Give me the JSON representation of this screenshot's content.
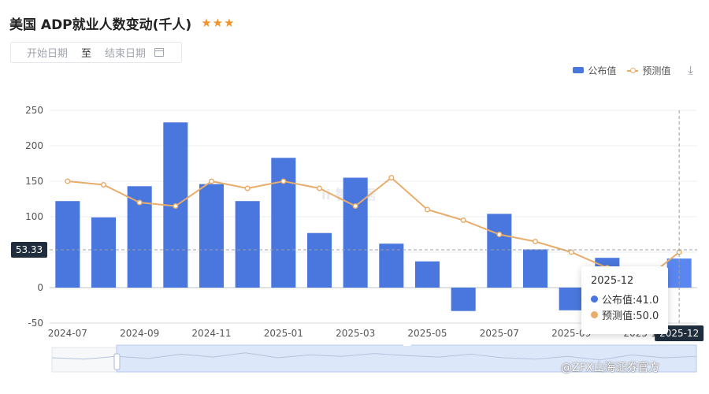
{
  "header": {
    "title": "美国 ADP就业人数变动(千人)",
    "stars": "★★★"
  },
  "date_range": {
    "start_placeholder": "开始日期",
    "separator": "至",
    "end_placeholder": "结束日期"
  },
  "legend": {
    "series_published": "公布值",
    "series_forecast": "预测值"
  },
  "colors": {
    "bar": "#4a77dd",
    "bar_hover": "#5a86f0",
    "line": "#e8ac6b",
    "axis_label_box": "#1f2d3d"
  },
  "watermark": "ii 智数据",
  "source": "@ZFX山海证券官方",
  "tooltip": {
    "title": "2025-12",
    "published": "公布值:41.0",
    "forecast": "预测值:50.0"
  },
  "crosshair": {
    "y_value": "53.33",
    "x_value": "2025-12"
  },
  "chart_data": {
    "type": "bar",
    "categories": [
      "2024-07",
      "2024-08",
      "2024-09",
      "2024-10",
      "2024-11",
      "2024-12",
      "2025-01",
      "2025-02",
      "2025-03",
      "2025-04",
      "2025-05",
      "2025-06",
      "2025-07",
      "2025-08",
      "2025-09",
      "2025-10",
      "2025-11",
      "2025-12"
    ],
    "x_tick_labels": [
      "2024-07",
      "2024-09",
      "2024-11",
      "2025-01",
      "2025-03",
      "2025-05",
      "2025-07",
      "2025-09",
      "2025-11",
      "2025-12"
    ],
    "series": [
      {
        "name": "公布值",
        "type": "bar",
        "values": [
          122,
          99,
          143,
          233,
          146,
          122,
          183,
          77,
          155,
          62,
          37,
          -33,
          104,
          54,
          -32,
          42,
          -32,
          41
        ]
      },
      {
        "name": "预测值",
        "type": "line",
        "values": [
          150,
          145,
          120,
          115,
          150,
          140,
          150,
          140,
          115,
          155,
          110,
          95,
          75,
          65,
          50,
          28,
          10,
          50
        ]
      }
    ],
    "y_ticks": [
      250,
      200,
      150,
      100,
      50,
      0,
      -50
    ],
    "ylim": [
      -50,
      250
    ],
    "grid": true,
    "legend_position": "top-right"
  }
}
